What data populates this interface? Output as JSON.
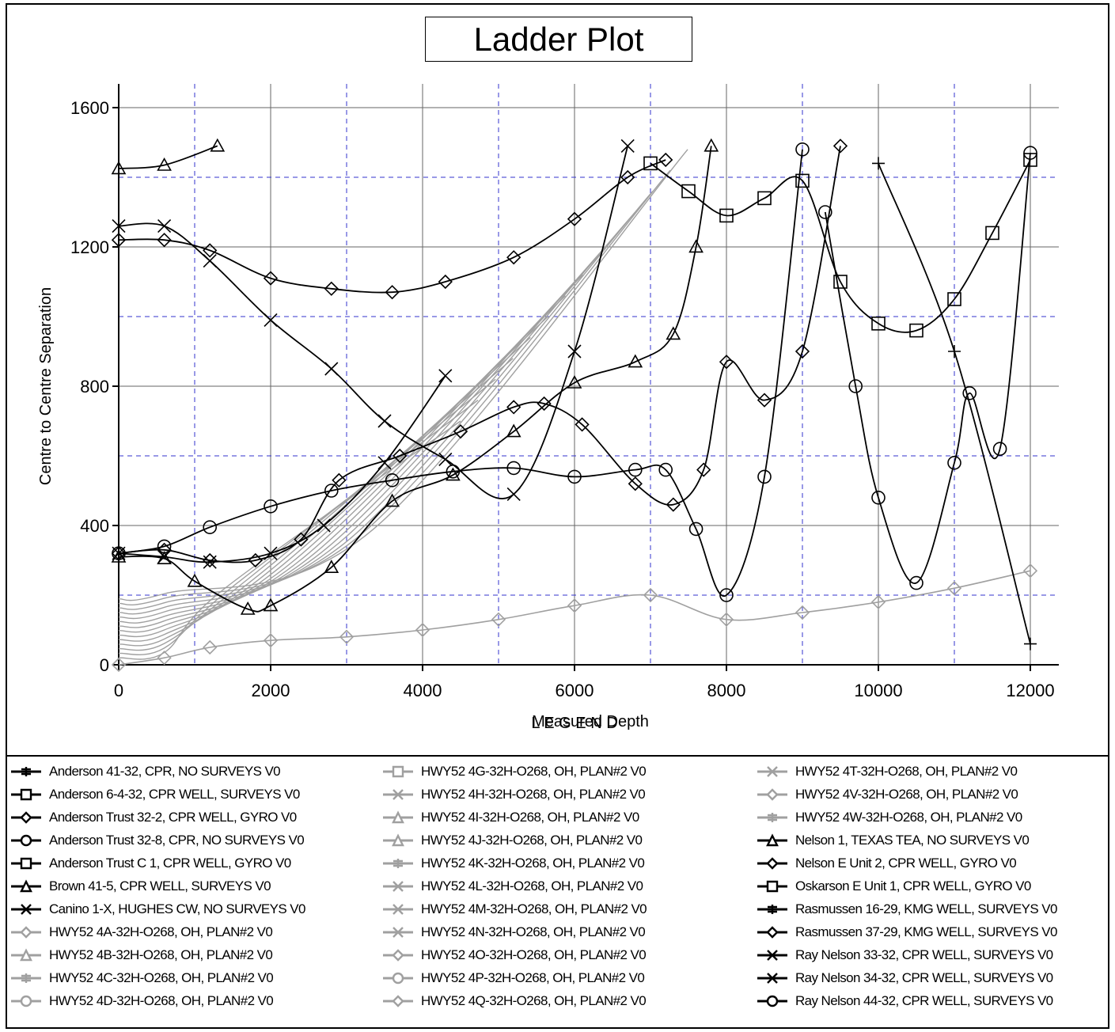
{
  "chart_data": {
    "type": "line",
    "title": "Ladder Plot",
    "xlabel": "Measured Depth",
    "ylabel": "Centre to Centre Separation",
    "xlim": [
      0,
      12000
    ],
    "ylim": [
      0,
      1600
    ],
    "x_ticks": [
      0,
      2000,
      4000,
      6000,
      8000,
      10000,
      12000
    ],
    "y_ticks": [
      0,
      400,
      800,
      1200,
      1600
    ],
    "grid": true,
    "legend_placement": "bottom",
    "legend_title": "L E G E N D",
    "colors": {
      "black_series": "#000000",
      "gray_series": "#a0a0a0",
      "dashed_grid": "#3333cc",
      "solid_grid": "#666666"
    },
    "series": [
      {
        "name": "Anderson 41-32, CPR, NO SURVEYS V0",
        "color": "#000000",
        "marker": "plus",
        "x": [
          0,
          1000,
          2000,
          3000,
          4000,
          5000,
          6000,
          7000,
          8000,
          9000,
          10000,
          11000,
          12000
        ],
        "y": [
          null,
          null,
          null,
          null,
          null,
          null,
          null,
          null,
          null,
          null,
          1440,
          900,
          60
        ]
      },
      {
        "name": "Anderson 6-4-32, CPR WELL, SURVEYS V0",
        "color": "#000000",
        "marker": "square",
        "x": [
          7000,
          7500,
          8000,
          8500,
          9000,
          9500,
          10000,
          10500,
          11000,
          11500,
          12000
        ],
        "y": [
          1440,
          1360,
          1290,
          1340,
          1390,
          1100,
          980,
          960,
          1050,
          1240,
          1450
        ]
      },
      {
        "name": "Anderson Trust 32-2, CPR WELL, GYRO V0",
        "color": "#000000",
        "marker": "diamond",
        "x": [
          0,
          600,
          1200,
          2000,
          2800,
          3600,
          4300,
          5200,
          6000,
          6700,
          7200
        ],
        "y": [
          1220,
          1220,
          1190,
          1110,
          1080,
          1070,
          1100,
          1170,
          1280,
          1400,
          1450
        ]
      },
      {
        "name": "Anderson Trust 32-8, CPR, NO SURVEYS V0",
        "color": "#000000",
        "marker": "circle",
        "x": [
          0,
          600,
          1200,
          2000,
          2800,
          3600,
          4400,
          5200,
          6000,
          6800,
          7200,
          7600,
          8000,
          8500,
          9000
        ],
        "y": [
          320,
          340,
          395,
          455,
          500,
          530,
          555,
          565,
          540,
          560,
          560,
          390,
          200,
          540,
          1480
        ]
      },
      {
        "name": "Anderson Trust C 1, CPR WELL, GYRO V0",
        "color": "#000000",
        "marker": "square",
        "x": [
          0
        ],
        "y": [
          null
        ]
      },
      {
        "name": "Brown 41-5, CPR WELL, SURVEYS V0",
        "color": "#000000",
        "marker": "triangle",
        "x": [
          0,
          600,
          1300
        ],
        "y": [
          1425,
          1435,
          1490
        ]
      },
      {
        "name": "Canino 1-X, HUGHES CW, NO SURVEYS V0",
        "color": "#000000",
        "marker": "x",
        "x": [
          0,
          600,
          1200,
          2000,
          2700,
          3500,
          4300
        ],
        "y": [
          320,
          310,
          295,
          320,
          400,
          580,
          830
        ]
      },
      {
        "name": "HWY52 4A-32H-O268, OH, PLAN#2 V0",
        "color": "#a0a0a0",
        "marker": "diamond",
        "x": [
          0,
          600,
          1200,
          2000,
          3000,
          4000,
          5000,
          6000,
          7000,
          8000,
          9000,
          10000,
          11000,
          12000
        ],
        "y": [
          0,
          20,
          50,
          70,
          80,
          100,
          130,
          170,
          200,
          130,
          150,
          180,
          220,
          270
        ]
      },
      {
        "name": "HWY52 4B-32H-O268, OH, PLAN#2 V0",
        "color": "#a0a0a0",
        "marker": "triangle",
        "x": [
          0
        ],
        "y": [
          null
        ]
      },
      {
        "name": "HWY52 4C-32H-O268, OH, PLAN#2 V0",
        "color": "#a0a0a0",
        "marker": "plus",
        "x": [
          0
        ],
        "y": [
          null
        ]
      },
      {
        "name": "HWY52 4D-32H-O268, OH, PLAN#2 V0",
        "color": "#a0a0a0",
        "marker": "circle",
        "x": [
          0
        ],
        "y": [
          null
        ]
      },
      {
        "name": "HWY52 4G-32H-O268, OH, PLAN#2 V0",
        "color": "#a0a0a0",
        "marker": "square",
        "x": [
          0
        ],
        "y": [
          null
        ]
      },
      {
        "name": "HWY52 4H-32H-O268, OH, PLAN#2 V0",
        "color": "#a0a0a0",
        "marker": "x",
        "x": [
          0
        ],
        "y": [
          null
        ]
      },
      {
        "name": "HWY52 4I-32H-O268, OH, PLAN#2 V0",
        "color": "#a0a0a0",
        "marker": "triangle",
        "x": [
          0
        ],
        "y": [
          null
        ]
      },
      {
        "name": "HWY52 4J-32H-O268, OH, PLAN#2 V0",
        "color": "#a0a0a0",
        "marker": "triangle",
        "x": [
          0
        ],
        "y": [
          null
        ]
      },
      {
        "name": "HWY52 4K-32H-O268, OH, PLAN#2 V0",
        "color": "#a0a0a0",
        "marker": "plus",
        "x": [
          0
        ],
        "y": [
          null
        ]
      },
      {
        "name": "HWY52 4L-32H-O268, OH, PLAN#2 V0",
        "color": "#a0a0a0",
        "marker": "x",
        "x": [
          0
        ],
        "y": [
          null
        ]
      },
      {
        "name": "HWY52 4M-32H-O268, OH, PLAN#2 V0",
        "color": "#a0a0a0",
        "marker": "x",
        "x": [
          0
        ],
        "y": [
          null
        ]
      },
      {
        "name": "HWY52 4N-32H-O268, OH, PLAN#2 V0",
        "color": "#a0a0a0",
        "marker": "x",
        "x": [
          0
        ],
        "y": [
          null
        ]
      },
      {
        "name": "HWY52 4O-32H-O268, OH, PLAN#2 V0",
        "color": "#a0a0a0",
        "marker": "diamond",
        "x": [
          0
        ],
        "y": [
          null
        ]
      },
      {
        "name": "HWY52 4P-32H-O268, OH, PLAN#2 V0",
        "color": "#a0a0a0",
        "marker": "circle",
        "x": [
          0
        ],
        "y": [
          null
        ]
      },
      {
        "name": "HWY52 4Q-32H-O268, OH, PLAN#2 V0",
        "color": "#a0a0a0",
        "marker": "diamond",
        "x": [
          0
        ],
        "y": [
          null
        ]
      },
      {
        "name": "HWY52 4T-32H-O268, OH, PLAN#2 V0",
        "color": "#a0a0a0",
        "marker": "x",
        "x": [
          0
        ],
        "y": [
          null
        ]
      },
      {
        "name": "HWY52 4V-32H-O268, OH, PLAN#2 V0",
        "color": "#a0a0a0",
        "marker": "diamond",
        "x": [
          0
        ],
        "y": [
          null
        ]
      },
      {
        "name": "HWY52 4W-32H-O268, OH, PLAN#2 V0",
        "color": "#a0a0a0",
        "marker": "plus",
        "x": [
          0
        ],
        "y": [
          null
        ]
      },
      {
        "name": "Nelson 1, TEXAS TEA, NO SURVEYS V0",
        "color": "#000000",
        "marker": "triangle",
        "x": [
          0,
          600,
          1000,
          1700,
          2000,
          2800,
          3600,
          4400,
          5200,
          6000,
          6800,
          7300,
          7600,
          7800
        ],
        "y": [
          310,
          305,
          240,
          160,
          170,
          280,
          470,
          545,
          670,
          810,
          870,
          950,
          1200,
          1490
        ]
      },
      {
        "name": "Nelson E Unit 2, CPR WELL, GYRO V0",
        "color": "#000000",
        "marker": "diamond",
        "x": [
          0,
          600,
          1200,
          1800,
          2400,
          2900,
          3700,
          4500,
          5200,
          5600,
          6100,
          6800,
          7300,
          7700,
          8000,
          8500,
          9000,
          9500
        ],
        "y": [
          320,
          330,
          300,
          300,
          360,
          530,
          600,
          670,
          740,
          750,
          690,
          520,
          460,
          560,
          870,
          760,
          900,
          1490
        ]
      },
      {
        "name": "Oskarson E Unit 1, CPR WELL, GYRO V0",
        "color": "#000000",
        "marker": "square",
        "x": [
          0
        ],
        "y": [
          null
        ]
      },
      {
        "name": "Rasmussen 16-29, KMG WELL, SURVEYS V0",
        "color": "#000000",
        "marker": "plus",
        "x": [
          0
        ],
        "y": [
          null
        ]
      },
      {
        "name": "Rasmussen 37-29, KMG WELL, SURVEYS V0",
        "color": "#000000",
        "marker": "diamond",
        "x": [
          0
        ],
        "y": [
          null
        ]
      },
      {
        "name": "Ray Nelson 33-32, CPR WELL, SURVEYS V0",
        "color": "#000000",
        "marker": "x",
        "x": [
          0,
          600,
          1200,
          2000,
          2800,
          3500,
          4300,
          5200,
          6000,
          6700
        ],
        "y": [
          1260,
          1260,
          1160,
          990,
          850,
          700,
          590,
          490,
          900,
          1490
        ]
      },
      {
        "name": "Ray Nelson 34-32, CPR WELL, SURVEYS V0",
        "color": "#000000",
        "marker": "x",
        "x": [
          0
        ],
        "y": [
          null
        ]
      },
      {
        "name": "Ray Nelson 44-32, CPR WELL, SURVEYS V0",
        "color": "#000000",
        "marker": "circle",
        "x": [
          9300,
          9700,
          10000,
          10500,
          11000,
          11200,
          11600,
          12000
        ],
        "y": [
          1300,
          800,
          480,
          235,
          580,
          780,
          620,
          1470
        ]
      }
    ]
  }
}
